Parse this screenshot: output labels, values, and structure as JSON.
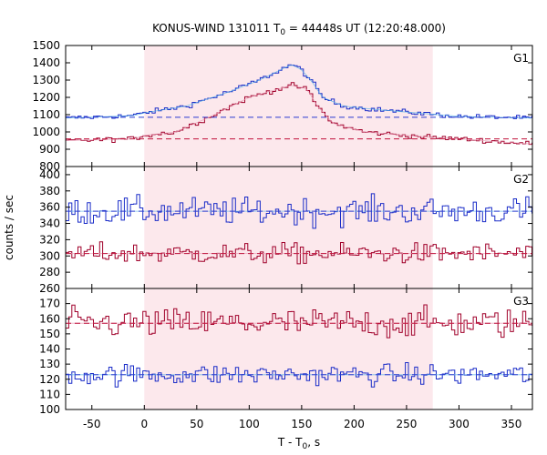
{
  "chart_data": {
    "type": "line",
    "title_pre": "KONUS-WIND 131011 T",
    "title_sub": "0",
    "title_post": " = 44448s UT (12:20:48.000)",
    "ylabel": "counts / sec",
    "xlabel_pre": "T - T",
    "xlabel_sub": "0",
    "xlabel_post": ", s",
    "xlim": [
      -75,
      370
    ],
    "xticks": [
      -50,
      0,
      50,
      100,
      150,
      200,
      250,
      300,
      350
    ],
    "highlight_interval": [
      0,
      275
    ],
    "colors": {
      "highlight": "#fce8ec",
      "blue": "#1a2cc8",
      "red": "#a0002a",
      "light_blue": "#5ab4e6",
      "light_red": "#e89ab4",
      "fit_blue": "#2a3ad0",
      "fit_red": "#c0103a"
    },
    "panels": [
      {
        "label": "G1",
        "ylim": [
          800,
          1500
        ],
        "yticks": [
          800,
          900,
          1000,
          1100,
          1200,
          1300,
          1400,
          1500
        ],
        "background_levels": [
          1085,
          960
        ],
        "series": [
          {
            "color": "blue",
            "knots": [
              [
                -75,
                1080
              ],
              [
                -30,
                1090
              ],
              [
                -10,
                1095
              ],
              [
                0,
                1110
              ],
              [
                40,
                1150
              ],
              [
                80,
                1230
              ],
              [
                110,
                1300
              ],
              [
                140,
                1390
              ],
              [
                150,
                1360
              ],
              [
                160,
                1290
              ],
              [
                170,
                1200
              ],
              [
                190,
                1150
              ],
              [
                220,
                1130
              ],
              [
                260,
                1110
              ],
              [
                300,
                1090
              ],
              [
                370,
                1080
              ]
            ],
            "noise": 10
          },
          {
            "color": "red",
            "knots": [
              [
                -75,
                950
              ],
              [
                -10,
                960
              ],
              [
                0,
                980
              ],
              [
                30,
                1000
              ],
              [
                60,
                1080
              ],
              [
                100,
                1200
              ],
              [
                140,
                1270
              ],
              [
                155,
                1250
              ],
              [
                165,
                1150
              ],
              [
                180,
                1050
              ],
              [
                210,
                1000
              ],
              [
                260,
                975
              ],
              [
                300,
                960
              ],
              [
                370,
                930
              ]
            ],
            "noise": 10
          }
        ]
      },
      {
        "label": "G2",
        "ylim": [
          260,
          410
        ],
        "yticks": [
          260,
          280,
          300,
          320,
          340,
          360,
          380,
          400
        ],
        "background_levels": [
          355,
          303
        ],
        "series": [
          {
            "color": "blue",
            "knots": [
              [
                -75,
                355
              ],
              [
                370,
                355
              ]
            ],
            "noise": 12
          },
          {
            "color": "red",
            "knots": [
              [
                -75,
                303
              ],
              [
                370,
                303
              ]
            ],
            "noise": 9
          }
        ]
      },
      {
        "label": "G3",
        "ylim": [
          100,
          180
        ],
        "yticks": [
          100,
          110,
          120,
          130,
          140,
          150,
          160,
          170
        ],
        "background_levels": [
          157,
          123
        ],
        "series": [
          {
            "color": "red",
            "knots": [
              [
                -75,
                157
              ],
              [
                370,
                157
              ]
            ],
            "noise": 7
          },
          {
            "color": "blue",
            "knots": [
              [
                -75,
                123
              ],
              [
                370,
                123
              ]
            ],
            "noise": 5
          }
        ]
      }
    ]
  }
}
